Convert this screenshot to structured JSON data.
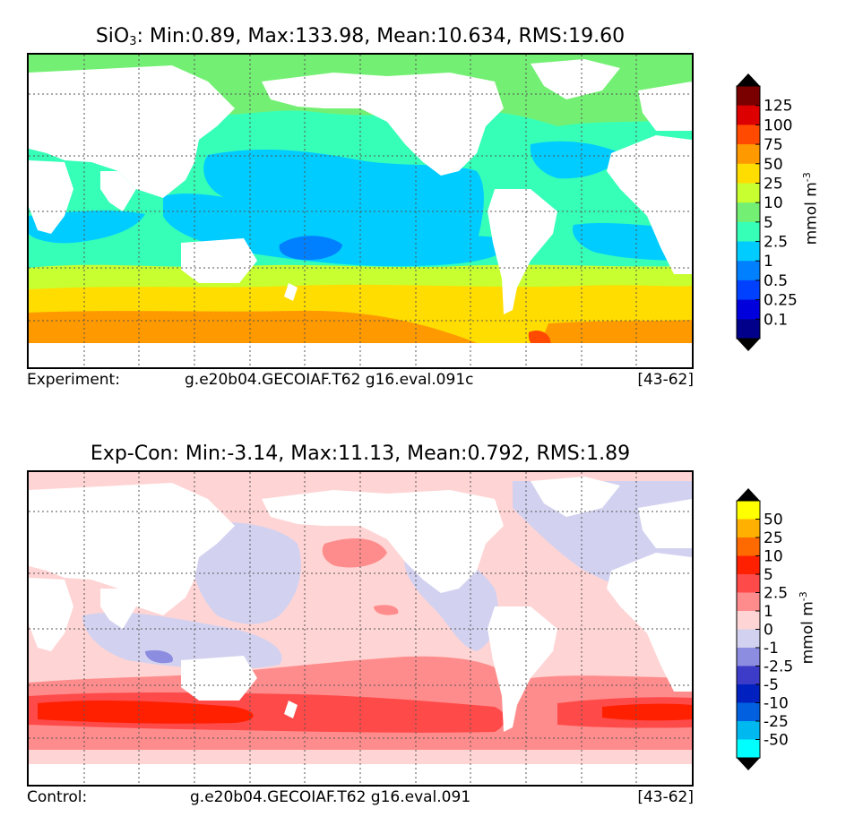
{
  "panel_top": {
    "title_prefix": "SiO",
    "title_sub": "3",
    "title_rest": ": Min:0.89, Max:133.98, Mean:10.634, RMS:19.60",
    "caption_left": "Experiment:",
    "caption_mid": "g.e20b04.GECOIAF.T62 g16.eval.091c",
    "caption_right": "[43-62]",
    "colorbar_unit": "mmol m",
    "colorbar_unit_sup": "-3",
    "colorbar_ticks": [
      "125",
      "100",
      "75",
      "50",
      "25",
      "10",
      "5",
      "2.5",
      "1",
      "0.5",
      "0.25",
      "0.1"
    ],
    "colorbar_colors": [
      "#7a0000",
      "#dd0000",
      "#ff4a00",
      "#ff9900",
      "#ffdd00",
      "#c8ff30",
      "#73f073",
      "#36ffb8",
      "#00ccff",
      "#0080ff",
      "#0040ff",
      "#0000dd",
      "#00008a"
    ],
    "colors": {
      "land": "#ffffff",
      "ocean_base": "#36ffb8",
      "subpolar": "#73f073",
      "gyre": "#00ccff",
      "gyre_core": "#0080ff",
      "south_1": "#c8ff30",
      "south_2": "#ffdd00",
      "south_3": "#ff9900",
      "south_4": "#ff4a00"
    }
  },
  "panel_bottom": {
    "title": "Exp-Con: Min:-3.14, Max:11.13, Mean:0.792, RMS:1.89",
    "caption_left": "Control:",
    "caption_mid": "g.e20b04.GECOIAF.T62 g16.eval.091",
    "caption_right": "[43-62]",
    "colorbar_unit": "mmol m",
    "colorbar_unit_sup": "-3",
    "colorbar_ticks": [
      "50",
      "25",
      "10",
      "5",
      "2.5",
      "1",
      "0",
      "-1",
      "-2.5",
      "-5",
      "-10",
      "-25",
      "-50"
    ],
    "colorbar_colors": [
      "#ffff00",
      "#ffb000",
      "#ff6a00",
      "#ff2000",
      "#ff4a4a",
      "#ff8c8c",
      "#ffd4d4",
      "#d2d2f0",
      "#8c8ce0",
      "#3c3cc8",
      "#0020c0",
      "#0060e0",
      "#00b8f0",
      "#00ffff"
    ],
    "colors": {
      "land": "#ffffff",
      "pos_small": "#ffd4d4",
      "neg_small": "#d2d2f0",
      "pos_mid": "#ff8c8c",
      "pos_high": "#ff4a4a",
      "pos_max": "#ff2000",
      "neg_mid": "#8c8ce0"
    }
  }
}
